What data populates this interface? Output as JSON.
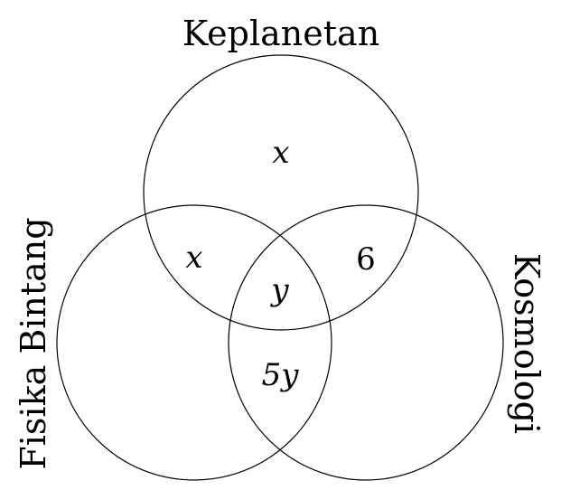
{
  "diagram": {
    "type": "venn-3-set",
    "sets": {
      "top": "Keplanetan",
      "left": "Fisika Bintang",
      "right": "Kosmologi"
    },
    "regions": {
      "top_only": "x",
      "top_left": "x",
      "top_right": "6",
      "center": "y",
      "left_right": "5y"
    }
  }
}
